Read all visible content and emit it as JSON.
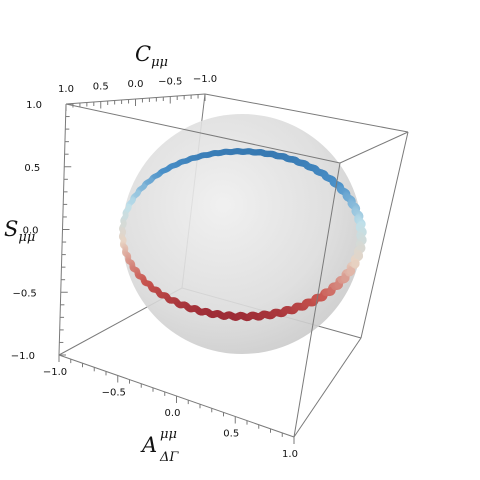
{
  "chart_data": {
    "type": "scatter3d",
    "title": "",
    "axes": {
      "x": {
        "label": "A",
        "label_superscript": "μμ",
        "label_subscript": "ΔΓ",
        "range": [
          -1.0,
          1.0
        ],
        "ticks": [
          -1.0,
          -0.5,
          0.0,
          0.5,
          1.0
        ],
        "tick_labels": [
          "−1.0",
          "−0.5",
          "0.0",
          "0.5",
          "1.0"
        ]
      },
      "y": {
        "label": "C",
        "label_subscript": "μμ",
        "range": [
          -1.0,
          1.0
        ],
        "ticks": [
          1.0,
          0.5,
          0.0,
          -0.5,
          -1.0
        ],
        "tick_labels": [
          "1.0",
          "0.5",
          "0.0",
          "−0.5",
          "−1.0"
        ]
      },
      "z": {
        "label": "S",
        "label_subscript": "μμ",
        "range": [
          -1.0,
          1.0
        ],
        "ticks": [
          1.0,
          0.5,
          0.0,
          -0.5,
          -1.0
        ],
        "tick_labels": [
          "1.0",
          "0.5",
          "0.0",
          "−0.5",
          "−1.0"
        ]
      }
    },
    "unit_sphere": {
      "radius": 1.0,
      "color": "#d4d4d4"
    },
    "curve": {
      "description_points": [
        {
          "A": 0.3,
          "C": 0.38,
          "S": 0.87
        },
        {
          "A": -0.87,
          "C": 0.5,
          "S": 0.0
        },
        {
          "A": -0.3,
          "C": -0.38,
          "S": -0.87
        },
        {
          "A": 0.87,
          "C": -0.5,
          "S": 0.0
        }
      ],
      "colormap": [
        "#8b1a2b",
        "#c8554f",
        "#e8d4c4",
        "#bfe0ea",
        "#4a90c8",
        "#2f6fa8"
      ]
    }
  }
}
